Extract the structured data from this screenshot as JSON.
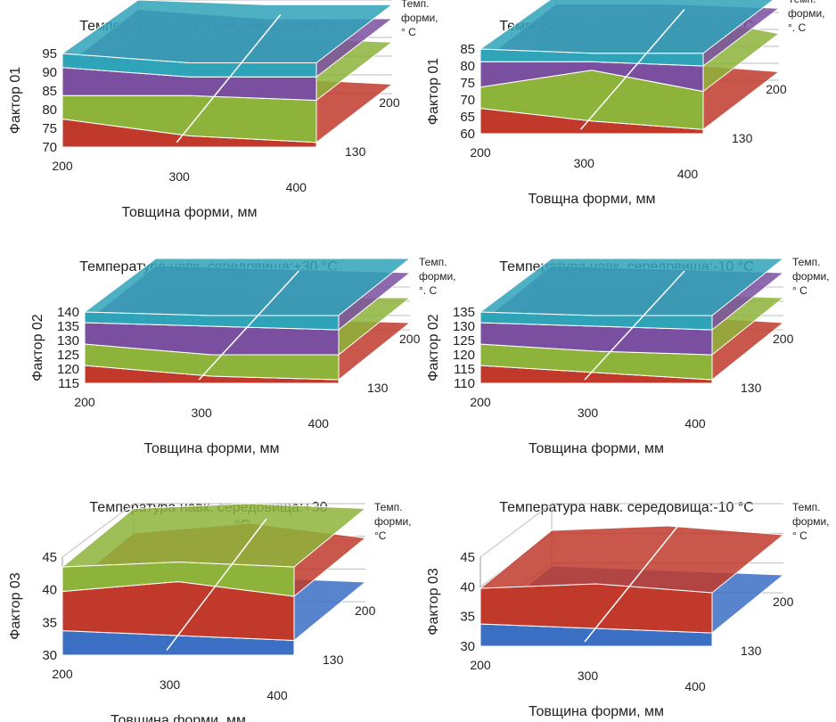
{
  "charts": [
    {
      "type": "surface",
      "title": "Температура навк. середовища:+30 °C",
      "xlabel": "Товщина форми, мм",
      "ylabel": "Фактор 01",
      "zlabel": [
        "Темп.",
        "форми,",
        "° C"
      ],
      "x_ticks": [
        "200",
        "300",
        "400"
      ],
      "y_ticks": [
        "70",
        "75",
        "80",
        "85",
        "90",
        "95"
      ],
      "depth_ticks": [
        "130",
        "200"
      ],
      "ylim": [
        70,
        95
      ],
      "band_colors": [
        "#c0392b",
        "#8db33a",
        "#7a4fa0",
        "#2fa3b8"
      ]
    },
    {
      "type": "surface",
      "title": "Температура навк. середовища:-10 °C",
      "xlabel": "Товщна форми, мм",
      "ylabel": "Фактор 01",
      "zlabel": [
        "Темп.",
        "форми,",
        "°. C"
      ],
      "x_ticks": [
        "200",
        "300",
        "400"
      ],
      "y_ticks": [
        "60",
        "65",
        "70",
        "75",
        "80",
        "85"
      ],
      "depth_ticks": [
        "130",
        "200"
      ],
      "ylim": [
        60,
        85
      ],
      "band_colors": [
        "#c0392b",
        "#8db33a",
        "#7a4fa0",
        "#2fa3b8"
      ]
    },
    {
      "type": "surface",
      "title": "Температура навк. середовища:+30 °C",
      "xlabel": "Товщина форми, мм",
      "ylabel": "Фактор 02",
      "zlabel": [
        "Темп.",
        "форми,",
        "°. C"
      ],
      "x_ticks": [
        "200",
        "300",
        "400"
      ],
      "y_ticks": [
        "115",
        "120",
        "125",
        "130",
        "135",
        "140"
      ],
      "depth_ticks": [
        "130",
        "200"
      ],
      "ylim": [
        115,
        140
      ],
      "band_colors": [
        "#c0392b",
        "#8db33a",
        "#7a4fa0",
        "#2fa3b8"
      ]
    },
    {
      "type": "surface",
      "title": "Температура навк. середовища:-10 °C",
      "xlabel": "Товщина форми, мм",
      "ylabel": "Фактор 02",
      "zlabel": [
        "Темп.",
        "форми,",
        "° C"
      ],
      "x_ticks": [
        "200",
        "300",
        "400"
      ],
      "y_ticks": [
        "110",
        "115",
        "120",
        "125",
        "130",
        "135"
      ],
      "depth_ticks": [
        "130",
        "200"
      ],
      "ylim": [
        110,
        135
      ],
      "band_colors": [
        "#c0392b",
        "#8db33a",
        "#7a4fa0",
        "#2fa3b8"
      ]
    },
    {
      "type": "surface",
      "title": "Температура навк. середовища:+30",
      "title_extra": "°C",
      "xlabel": "Товщина форми, мм",
      "ylabel": "Фактор 03",
      "zlabel": [
        "Темп.",
        "форми,",
        "°C"
      ],
      "x_ticks": [
        "200",
        "300",
        "400"
      ],
      "y_ticks": [
        "30",
        "35",
        "40",
        "45"
      ],
      "depth_ticks": [
        "130",
        "200"
      ],
      "ylim": [
        30,
        45
      ],
      "band_colors": [
        "#3a6fc4",
        "#c0392b",
        "#8db33a"
      ]
    },
    {
      "type": "surface",
      "title": "Температура навк. середовища:-10 °C",
      "xlabel": "Товщина форми, мм",
      "ylabel": "Фактор 03",
      "zlabel": [
        "Темп.",
        "форми,",
        "° C"
      ],
      "x_ticks": [
        "200",
        "300",
        "400"
      ],
      "y_ticks": [
        "30",
        "35",
        "40",
        "45"
      ],
      "depth_ticks": [
        "130",
        "200"
      ],
      "ylim": [
        30,
        45
      ],
      "band_colors": [
        "#3a6fc4",
        "#c0392b"
      ]
    }
  ]
}
